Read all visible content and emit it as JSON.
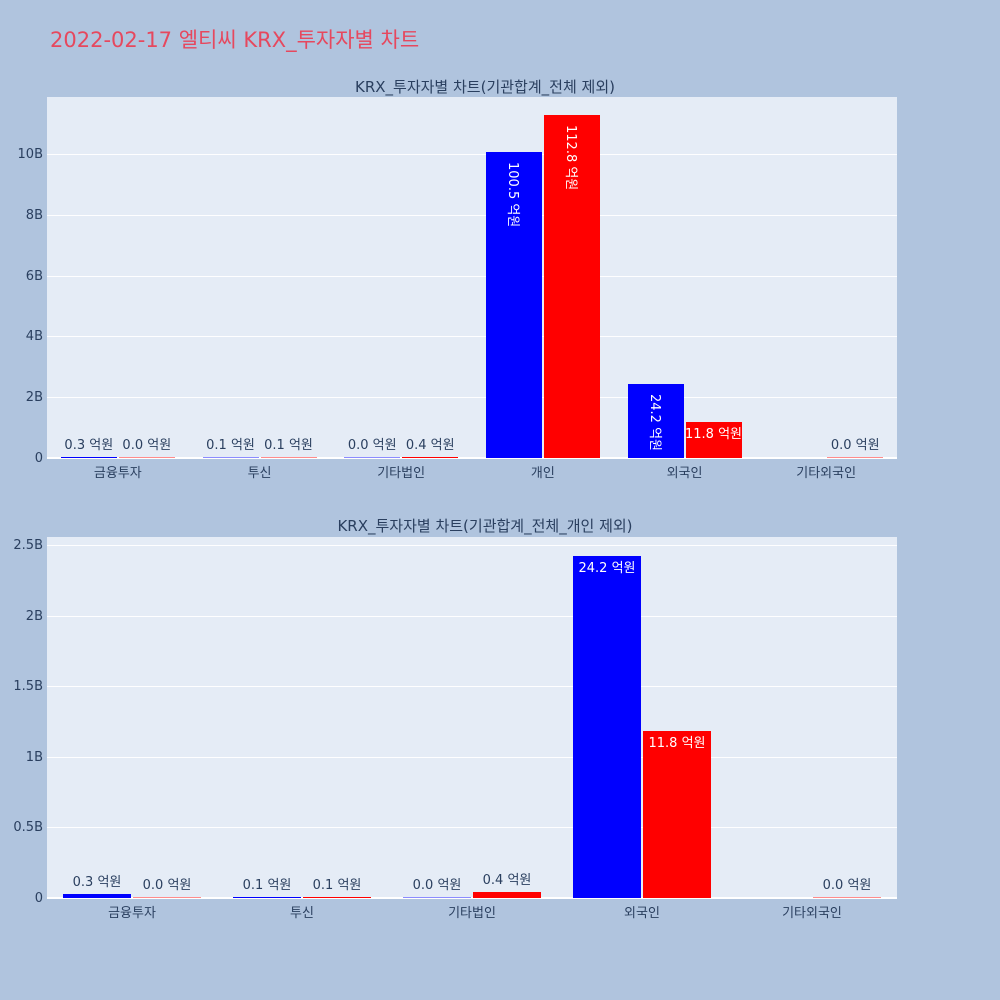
{
  "page": {
    "title": "2022-02-17 엘티씨 KRX_투자자별 차트",
    "title_color": "#e6485e",
    "background": "#b0c4de"
  },
  "colors": {
    "plot_bg": "#e5ecf6",
    "grid": "#ffffff",
    "axis_text": "#2a3f5f",
    "inside_label": "#ffffff",
    "bar_blue": "#0000ff",
    "bar_red": "#ff0000"
  },
  "chart_data": [
    {
      "type": "bar",
      "title": "KRX_투자자별 차트(기관합계_전체 제외)",
      "xlabel": "",
      "ylabel": "",
      "unit": "억원",
      "value_suffix": " 억원",
      "grid": true,
      "legend": "none",
      "categories": [
        "금융투자",
        "투신",
        "기타법인",
        "개인",
        "외국인",
        "기타외국인"
      ],
      "series": [
        {
          "name": "series_blue",
          "color": "#0000ff",
          "values": [
            0.3,
            0.1,
            0.0,
            100.5,
            24.2,
            null
          ]
        },
        {
          "name": "series_red",
          "color": "#ff0000",
          "values": [
            0.0,
            0.1,
            0.4,
            112.8,
            11.8,
            0.0
          ]
        }
      ],
      "yticks": [
        {
          "label": "0",
          "value": 0
        },
        {
          "label": "2B",
          "value": 2
        },
        {
          "label": "4B",
          "value": 4
        },
        {
          "label": "6B",
          "value": 6
        },
        {
          "label": "8B",
          "value": 8
        },
        {
          "label": "10B",
          "value": 10
        }
      ],
      "ymax_b": 11.9,
      "ylim": [
        0,
        11.9
      ],
      "label_layout": [
        [
          "out",
          "out"
        ],
        [
          "out",
          "out"
        ],
        [
          "out",
          "out"
        ],
        [
          "in-v",
          "in-v"
        ],
        [
          "in-v",
          "in-h"
        ],
        [
          null,
          "out"
        ]
      ]
    },
    {
      "type": "bar",
      "title": "KRX_투자자별 차트(기관합계_전체_개인 제외)",
      "xlabel": "",
      "ylabel": "",
      "unit": "억원",
      "value_suffix": " 억원",
      "grid": true,
      "legend": "none",
      "categories": [
        "금융투자",
        "투신",
        "기타법인",
        "외국인",
        "기타외국인"
      ],
      "series": [
        {
          "name": "series_blue",
          "color": "#0000ff",
          "values": [
            0.3,
            0.1,
            0.0,
            24.2,
            null
          ]
        },
        {
          "name": "series_red",
          "color": "#ff0000",
          "values": [
            0.0,
            0.1,
            0.4,
            11.8,
            0.0
          ]
        }
      ],
      "yticks": [
        {
          "label": "0",
          "value": 0
        },
        {
          "label": "0.5B",
          "value": 0.5
        },
        {
          "label": "1B",
          "value": 1
        },
        {
          "label": "1.5B",
          "value": 1.5
        },
        {
          "label": "2B",
          "value": 2
        },
        {
          "label": "2.5B",
          "value": 2.5
        }
      ],
      "ymax_b": 2.565,
      "ylim": [
        0,
        2.565
      ],
      "label_layout": [
        [
          "out",
          "out"
        ],
        [
          "out",
          "out"
        ],
        [
          "out",
          "out"
        ],
        [
          "in-h",
          "in-h"
        ],
        [
          null,
          "out"
        ]
      ]
    }
  ]
}
